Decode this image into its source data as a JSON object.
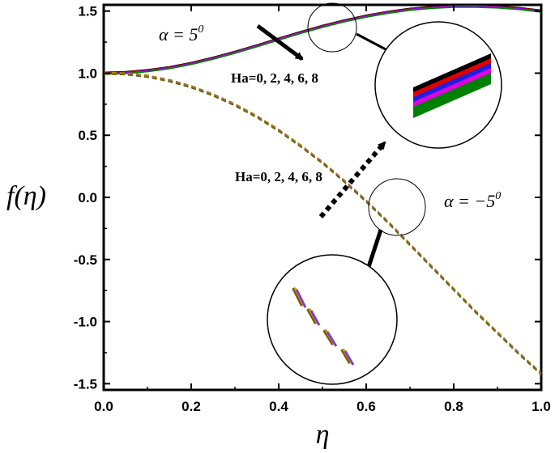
{
  "chart_data": {
    "type": "line",
    "xlabel": "η",
    "ylabel": "f(η)",
    "xlim": [
      0.0,
      1.0
    ],
    "ylim": [
      -1.55,
      1.55
    ],
    "x_ticks": [
      "0.0",
      "0.2",
      "0.4",
      "0.6",
      "0.8",
      "1.0"
    ],
    "y_ticks": [
      "1.5",
      "1.0",
      "0.5",
      "0.0",
      "-0.5",
      "-1.0",
      "-1.5"
    ],
    "grid": false,
    "annotations": {
      "alpha_pos": "α = 5",
      "alpha_pos_sup": "0",
      "alpha_neg": "α = −5",
      "alpha_neg_sup": "0",
      "ha_upper": "Ha=0, 2, 4, 6, 8",
      "ha_lower": "Ha=0, 2, 4, 6, 8"
    },
    "series_colors": [
      "#000000",
      "#e00000",
      "#1f1fe0",
      "#e000e0",
      "#008000"
    ],
    "dashed_colors": [
      "#7a5a00",
      "#d4a000",
      "#8040c0",
      "#b08000",
      "#606000"
    ],
    "series": [
      {
        "group": "alpha=5",
        "style": "solid",
        "x": [
          0.0,
          0.05,
          0.1,
          0.15,
          0.2,
          0.25,
          0.3,
          0.35,
          0.4,
          0.45,
          0.5,
          0.55,
          0.6,
          0.65,
          0.7,
          0.75,
          0.8,
          0.85,
          0.9,
          0.95,
          1.0
        ],
        "values": [
          1.0,
          1.005,
          1.02,
          1.044,
          1.078,
          1.12,
          1.168,
          1.22,
          1.274,
          1.327,
          1.377,
          1.421,
          1.459,
          1.49,
          1.514,
          1.53,
          1.538,
          1.539,
          1.533,
          1.52,
          1.5
        ]
      },
      {
        "group": "alpha=-5",
        "style": "dashed",
        "x": [
          0.0,
          0.05,
          0.1,
          0.15,
          0.2,
          0.25,
          0.3,
          0.35,
          0.4,
          0.45,
          0.5,
          0.55,
          0.6,
          0.65,
          0.7,
          0.75,
          0.8,
          0.85,
          0.9,
          0.95,
          1.0
        ],
        "values": [
          1.0,
          0.995,
          0.975,
          0.94,
          0.89,
          0.825,
          0.745,
          0.65,
          0.54,
          0.415,
          0.28,
          0.13,
          -0.03,
          -0.2,
          -0.38,
          -0.56,
          -0.74,
          -0.92,
          -1.09,
          -1.26,
          -1.42
        ]
      }
    ]
  }
}
